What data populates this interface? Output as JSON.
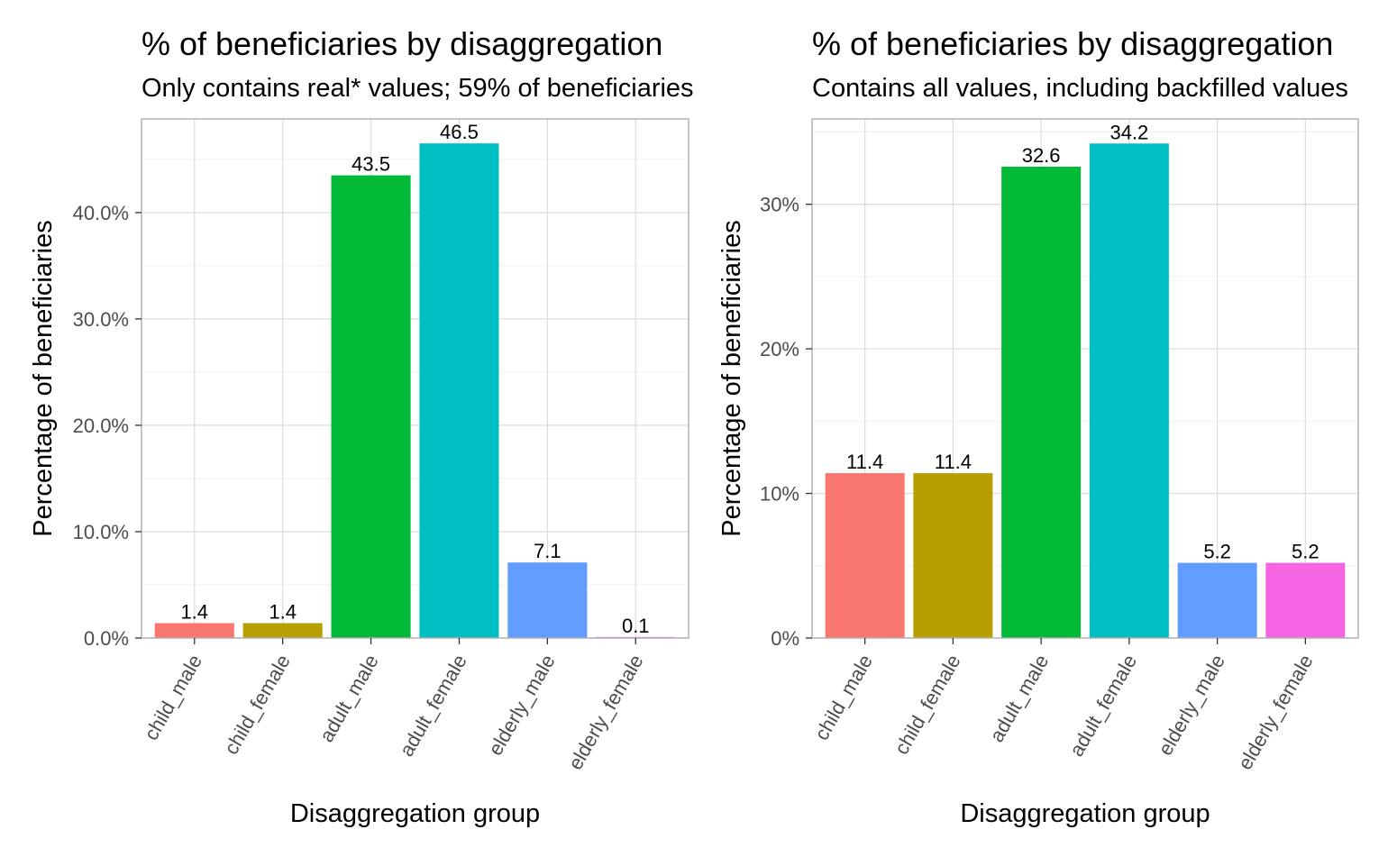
{
  "chart_data": [
    {
      "type": "bar",
      "title": "% of beneficiaries by disaggregation",
      "subtitle": "Only contains real* values; 59% of beneficiaries",
      "xlabel": "Disaggregation group",
      "ylabel": "Percentage of beneficiaries",
      "categories": [
        "child_male",
        "child_female",
        "adult_male",
        "adult_female",
        "elderly_male",
        "elderly_female"
      ],
      "values": [
        1.4,
        1.4,
        43.5,
        46.5,
        7.1,
        0.1
      ],
      "data_labels": [
        "1.4",
        "1.4",
        "43.5",
        "46.5",
        "7.1",
        "0.1"
      ],
      "ylim": [
        0,
        48.8
      ],
      "yticks": [
        0,
        10,
        20,
        30,
        40
      ],
      "ytick_labels": [
        "0.0%",
        "10.0%",
        "20.0%",
        "30.0%",
        "40.0%"
      ],
      "colors": [
        "#F8766D",
        "#B79F00",
        "#00BA38",
        "#00BFC4",
        "#619CFF",
        "#F564E3"
      ],
      "grid": true,
      "legend": "none"
    },
    {
      "type": "bar",
      "title": "% of beneficiaries by disaggregation",
      "subtitle": "Contains all values, including backfilled values",
      "xlabel": "Disaggregation group",
      "ylabel": "Percentage of beneficiaries",
      "categories": [
        "child_male",
        "child_female",
        "adult_male",
        "adult_female",
        "elderly_male",
        "elderly_female"
      ],
      "values": [
        11.4,
        11.4,
        32.6,
        34.2,
        5.2,
        5.2
      ],
      "data_labels": [
        "11.4",
        "11.4",
        "32.6",
        "34.2",
        "5.2",
        "5.2"
      ],
      "ylim": [
        0,
        35.9
      ],
      "yticks": [
        0,
        10,
        20,
        30
      ],
      "ytick_labels": [
        "0%",
        "10%",
        "20%",
        "30%"
      ],
      "colors": [
        "#F8766D",
        "#B79F00",
        "#00BA38",
        "#00BFC4",
        "#619CFF",
        "#F564E3"
      ],
      "grid": true,
      "legend": "none"
    }
  ]
}
